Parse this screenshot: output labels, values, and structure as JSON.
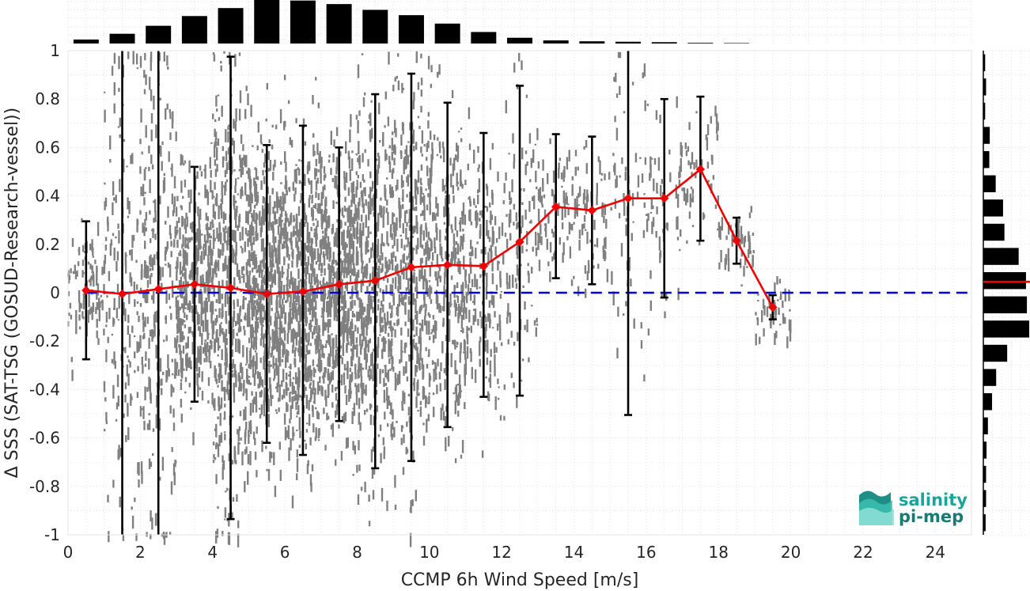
{
  "chart_data": {
    "type": "scatter",
    "title": "",
    "xlabel": "CCMP 6h Wind Speed [m/s]",
    "ylabel": "Δ SSS (SAT-TSG (GOSUD-Research-vessel))",
    "xlim": [
      0,
      25
    ],
    "ylim": [
      -1,
      1
    ],
    "grid": true,
    "xticks": [
      "0",
      "2",
      "4",
      "6",
      "8",
      "10",
      "12",
      "14",
      "16",
      "18",
      "20",
      "22",
      "24"
    ],
    "yticks": [
      "-1",
      "-0.8",
      "-0.6",
      "-0.4",
      "-0.2",
      "0",
      "0.2",
      "0.4",
      "0.6",
      "0.8",
      "1"
    ],
    "scatter_color": "#808080",
    "reference_line": {
      "y": 0,
      "color": "#0000dd",
      "style": "dashed"
    },
    "binned_mean": {
      "color": "#ee0000",
      "x": [
        0.5,
        1.5,
        2.5,
        3.5,
        4.5,
        5.5,
        6.5,
        7.5,
        8.5,
        9.5,
        10.5,
        11.5,
        12.5,
        13.5,
        14.5,
        15.5,
        16.5,
        17.5,
        18.5,
        19.5
      ],
      "y": [
        0.01,
        -0.005,
        0.015,
        0.035,
        0.02,
        -0.005,
        0.005,
        0.035,
        0.05,
        0.105,
        0.115,
        0.11,
        0.21,
        0.355,
        0.34,
        0.39,
        0.39,
        0.51,
        0.215,
        -0.06
      ],
      "err_low": [
        -0.275,
        -1.0,
        -1.0,
        -0.45,
        -0.935,
        -0.62,
        -0.67,
        -0.53,
        -0.725,
        -0.695,
        -0.555,
        -0.43,
        -0.425,
        0.06,
        0.035,
        -0.505,
        -0.02,
        0.215,
        0.12,
        -0.11
      ],
      "err_high": [
        0.295,
        1.0,
        1.0,
        0.52,
        0.975,
        0.61,
        0.69,
        0.6,
        0.82,
        0.905,
        0.785,
        0.66,
        0.855,
        0.655,
        0.645,
        1.0,
        0.8,
        0.81,
        0.31,
        -0.01
      ]
    },
    "top_histogram": {
      "bin_centers": [
        0.5,
        1.5,
        2.5,
        3.5,
        4.5,
        5.5,
        6.5,
        7.5,
        8.5,
        9.5,
        10.5,
        11.5,
        12.5,
        13.5,
        14.5,
        15.5,
        16.5,
        17.5,
        18.5
      ],
      "relative_counts": [
        0.09,
        0.22,
        0.4,
        0.62,
        0.8,
        1.0,
        0.97,
        0.89,
        0.76,
        0.64,
        0.45,
        0.26,
        0.13,
        0.07,
        0.05,
        0.04,
        0.03,
        0.015,
        0.01
      ]
    },
    "right_histogram": {
      "bin_centers": [
        0.95,
        0.85,
        0.75,
        0.65,
        0.55,
        0.45,
        0.35,
        0.25,
        0.15,
        0.05,
        -0.05,
        -0.15,
        -0.25,
        -0.35,
        -0.45,
        -0.55,
        -0.65,
        -0.75,
        -0.85,
        -0.95
      ],
      "relative_counts": [
        0.04,
        0.06,
        0.04,
        0.14,
        0.13,
        0.27,
        0.43,
        0.46,
        0.77,
        0.93,
        0.95,
        1.0,
        0.52,
        0.28,
        0.19,
        0.1,
        0.07,
        0.06,
        0.06,
        0.05
      ],
      "mean": 0.045,
      "mean_color": "#ee0000"
    }
  },
  "logo": {
    "line1": "salinity",
    "line2": "pi-mep",
    "color1": "#1aa59a",
    "color2": "#177a73"
  }
}
